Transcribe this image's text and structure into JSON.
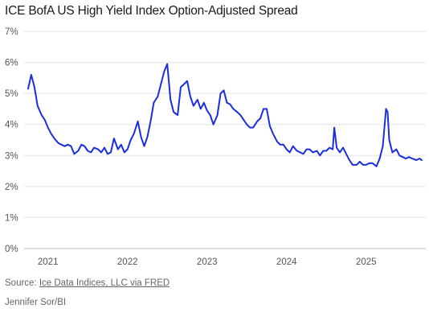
{
  "title": "ICE BofA US High Yield Index Option-Adjusted Spread",
  "source_prefix": "Source: ",
  "source_link": "Ice Data Indices, LLC via FRED",
  "credit": "Jennifer Sor/BI",
  "chart_data": {
    "type": "line",
    "title": "ICE BofA US High Yield Index Option-Adjusted Spread",
    "xlabel": "",
    "ylabel": "",
    "ylim": [
      0,
      7
    ],
    "xlim": [
      2020.7,
      2025.75
    ],
    "y_tick_labels": [
      "0%",
      "1%",
      "2%",
      "3%",
      "4%",
      "5%",
      "6%",
      "7%"
    ],
    "y_ticks": [
      0,
      1,
      2,
      3,
      4,
      5,
      6,
      7
    ],
    "x_tick_labels": [
      "2021",
      "2022",
      "2023",
      "2024",
      "2025"
    ],
    "x_ticks": [
      2021,
      2022,
      2023,
      2024,
      2025
    ],
    "grid": "horizontal",
    "series": [
      {
        "color": "#1a2ee0",
        "x": [
          2020.75,
          2020.79,
          2020.83,
          2020.87,
          2020.92,
          2020.96,
          2021.0,
          2021.04,
          2021.08,
          2021.13,
          2021.17,
          2021.21,
          2021.25,
          2021.29,
          2021.33,
          2021.38,
          2021.42,
          2021.46,
          2021.5,
          2021.54,
          2021.58,
          2021.63,
          2021.67,
          2021.71,
          2021.75,
          2021.79,
          2021.83,
          2021.88,
          2021.92,
          2021.96,
          2022.0,
          2022.04,
          2022.08,
          2022.13,
          2022.17,
          2022.21,
          2022.25,
          2022.29,
          2022.33,
          2022.38,
          2022.42,
          2022.46,
          2022.5,
          2022.54,
          2022.58,
          2022.63,
          2022.67,
          2022.71,
          2022.75,
          2022.79,
          2022.83,
          2022.88,
          2022.92,
          2022.96,
          2023.0,
          2023.04,
          2023.08,
          2023.13,
          2023.17,
          2023.21,
          2023.25,
          2023.29,
          2023.33,
          2023.38,
          2023.42,
          2023.46,
          2023.5,
          2023.54,
          2023.58,
          2023.63,
          2023.67,
          2023.71,
          2023.75,
          2023.79,
          2023.83,
          2023.88,
          2023.92,
          2023.96,
          2024.0,
          2024.04,
          2024.08,
          2024.13,
          2024.17,
          2024.21,
          2024.25,
          2024.29,
          2024.33,
          2024.38,
          2024.42,
          2024.46,
          2024.5,
          2024.54,
          2024.58,
          2024.6,
          2024.63,
          2024.67,
          2024.71,
          2024.75,
          2024.79,
          2024.83,
          2024.88,
          2024.92,
          2024.96,
          2025.0,
          2025.04,
          2025.08,
          2025.13,
          2025.17,
          2025.21,
          2025.25,
          2025.27,
          2025.29,
          2025.33,
          2025.38,
          2025.42,
          2025.46,
          2025.5,
          2025.54,
          2025.58,
          2025.63,
          2025.67,
          2025.7
        ],
        "values": [
          5.15,
          5.6,
          5.2,
          4.6,
          4.3,
          4.15,
          3.9,
          3.7,
          3.55,
          3.4,
          3.35,
          3.3,
          3.35,
          3.3,
          3.05,
          3.15,
          3.35,
          3.3,
          3.15,
          3.1,
          3.25,
          3.2,
          3.1,
          3.25,
          3.05,
          3.1,
          3.55,
          3.2,
          3.35,
          3.1,
          3.2,
          3.5,
          3.7,
          4.1,
          3.6,
          3.3,
          3.6,
          4.1,
          4.7,
          4.9,
          5.3,
          5.7,
          5.95,
          4.8,
          4.4,
          4.3,
          5.2,
          5.3,
          5.4,
          4.9,
          4.6,
          4.8,
          4.5,
          4.7,
          4.45,
          4.3,
          4.0,
          4.3,
          5.0,
          5.1,
          4.7,
          4.65,
          4.5,
          4.4,
          4.3,
          4.15,
          4.0,
          3.9,
          3.9,
          4.1,
          4.2,
          4.5,
          4.5,
          3.95,
          3.7,
          3.45,
          3.35,
          3.35,
          3.2,
          3.1,
          3.3,
          3.15,
          3.1,
          3.05,
          3.2,
          3.2,
          3.1,
          3.15,
          3.0,
          3.15,
          3.15,
          3.25,
          3.2,
          3.9,
          3.25,
          3.1,
          3.25,
          3.05,
          2.85,
          2.7,
          2.7,
          2.8,
          2.7,
          2.7,
          2.75,
          2.75,
          2.65,
          2.9,
          3.3,
          4.5,
          4.4,
          3.5,
          3.1,
          3.2,
          3.0,
          2.95,
          2.9,
          2.95,
          2.9,
          2.85,
          2.9,
          2.85
        ]
      }
    ]
  }
}
